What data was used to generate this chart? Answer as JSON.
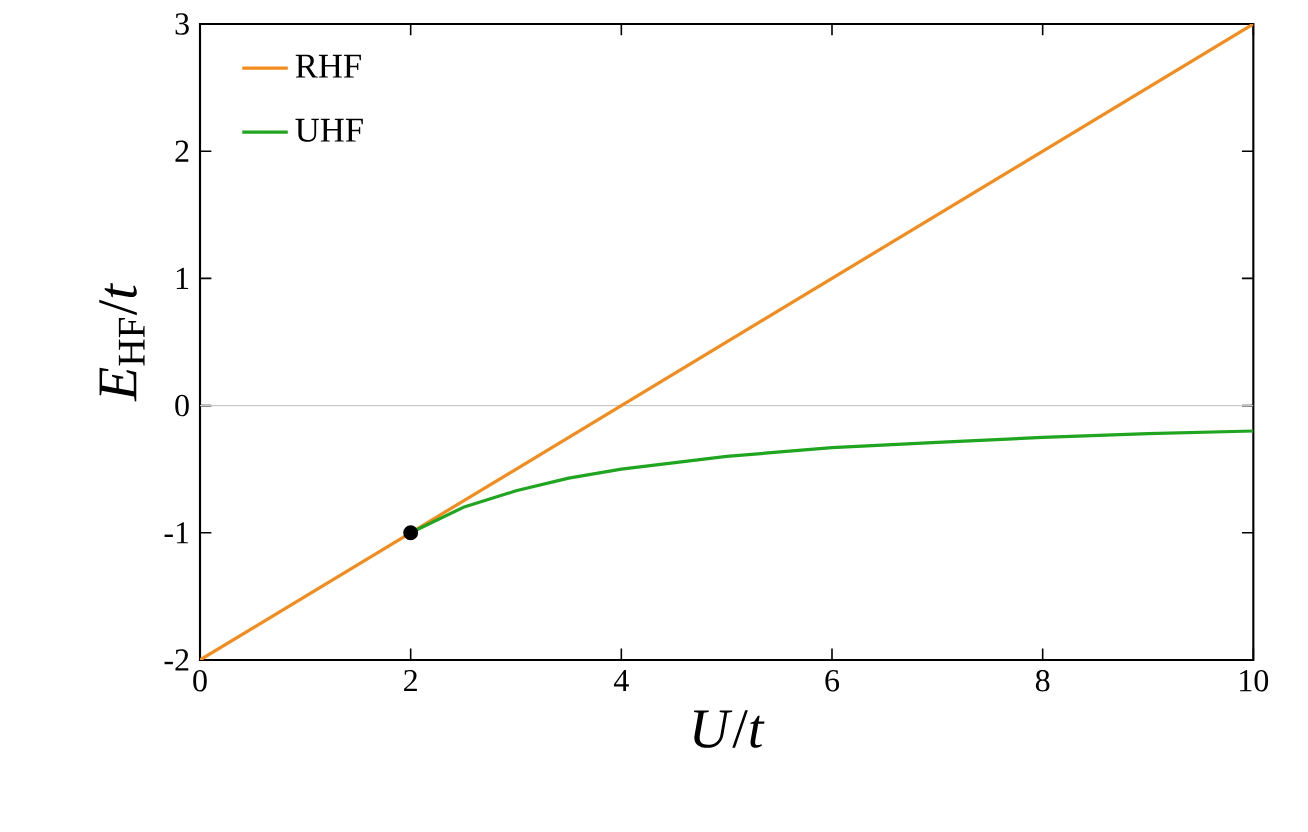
{
  "chart_data": {
    "type": "line",
    "xlabel": "*U*/*t*",
    "ylabel": "*E*$_{HF}$/*t*",
    "xlim": [
      0,
      10
    ],
    "ylim": [
      -2,
      3
    ],
    "xticks": [
      0,
      2,
      4,
      6,
      8,
      10
    ],
    "yticks": [
      -2,
      -1,
      0,
      1,
      2,
      3
    ],
    "legend": "top left",
    "grid": false,
    "ref_lines": [
      {
        "axis": "y",
        "value": 0,
        "color": "#c8c8c8"
      }
    ],
    "series": [
      {
        "name": "RHF",
        "color": "#f28c1e",
        "x": [
          0,
          10
        ],
        "values": [
          -2,
          3
        ]
      },
      {
        "name": "UHF",
        "color": "#1fa51f",
        "x": [
          2,
          2.5,
          3,
          3.5,
          4,
          5,
          6,
          7,
          8,
          9,
          10
        ],
        "values": [
          -1,
          -0.8,
          -0.67,
          -0.57,
          -0.5,
          -0.4,
          -0.33,
          -0.29,
          -0.25,
          -0.22,
          -0.2
        ]
      },
      {
        "type": "scatter",
        "marker": "circle",
        "color": "#000000",
        "x": [
          2
        ],
        "values": [
          -1
        ]
      }
    ]
  }
}
